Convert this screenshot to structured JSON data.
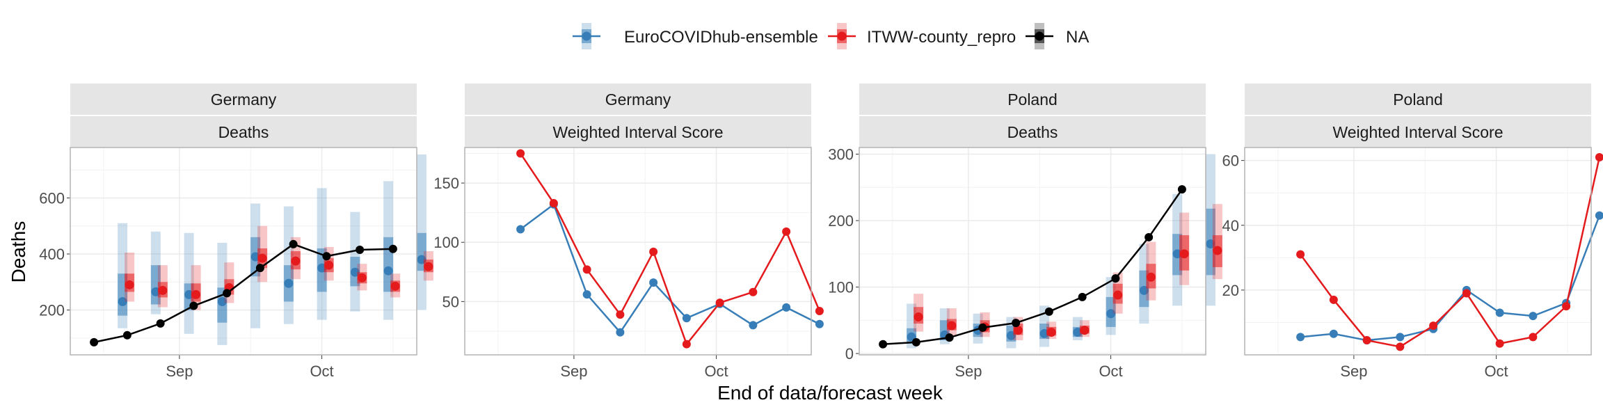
{
  "figure": {
    "xlabel": "End of data/forecast week",
    "ylabel": "Deaths",
    "x_tick_labels": [
      "Sep",
      "Oct"
    ]
  },
  "legend": {
    "placement": "top-center",
    "items": [
      {
        "label": "EuroCOVIDhub-ensemble",
        "color": "#377EB8"
      },
      {
        "label": "ITWW-county_repro",
        "color": "#E41A1C"
      },
      {
        "label": "NA",
        "color": "#000000"
      }
    ]
  },
  "colors": {
    "ensemble": "#377EB8",
    "itww": "#E41A1C",
    "observed": "#000000",
    "strip_bg": "#E5E5E5",
    "grid": "#EBEBEB"
  },
  "chart_data": [
    {
      "type": "line",
      "strip": [
        "Germany",
        "Deaths"
      ],
      "x": [
        "2021-08-14",
        "2021-08-21",
        "2021-08-28",
        "2021-09-04",
        "2021-09-11",
        "2021-09-18",
        "2021-09-25",
        "2021-10-02",
        "2021-10-09",
        "2021-10-16"
      ],
      "xlim": [
        "2021-08-09",
        "2021-10-21"
      ],
      "ylim": [
        40,
        780
      ],
      "yticks": [
        200,
        400,
        600
      ],
      "observed": [
        85,
        110,
        152,
        215,
        260,
        350,
        435,
        392,
        415,
        418
      ],
      "forecasts": [
        {
          "series": "EuroCOVIDhub-ensemble",
          "points": [
            {
              "date": "2021-08-14",
              "median": 230,
              "q25": 180,
              "q75": 330,
              "q05": 135,
              "q95": 510
            },
            {
              "date": "2021-08-21",
              "median": 265,
              "q25": 220,
              "q75": 360,
              "q05": 185,
              "q95": 480
            },
            {
              "date": "2021-08-28",
              "median": 255,
              "q25": 200,
              "q75": 295,
              "q05": 115,
              "q95": 475
            },
            {
              "date": "2021-09-04",
              "median": 230,
              "q25": 155,
              "q75": 280,
              "q05": 75,
              "q95": 440
            },
            {
              "date": "2021-09-11",
              "median": 390,
              "q25": 320,
              "q75": 460,
              "q05": 135,
              "q95": 580
            },
            {
              "date": "2021-09-18",
              "median": 295,
              "q25": 230,
              "q75": 360,
              "q05": 150,
              "q95": 570
            },
            {
              "date": "2021-09-25",
              "median": 350,
              "q25": 265,
              "q75": 420,
              "q05": 165,
              "q95": 635
            },
            {
              "date": "2021-10-02",
              "median": 335,
              "q25": 285,
              "q75": 390,
              "q05": 195,
              "q95": 550
            },
            {
              "date": "2021-10-09",
              "median": 340,
              "q25": 265,
              "q75": 460,
              "q05": 165,
              "q95": 660
            },
            {
              "date": "2021-10-16",
              "median": 380,
              "q25": 340,
              "q75": 475,
              "q05": 200,
              "q95": 755
            }
          ]
        },
        {
          "series": "ITWW-county_repro",
          "points": [
            {
              "date": "2021-08-14",
              "median": 290,
              "q25": 265,
              "q75": 330,
              "q05": 230,
              "q95": 405
            },
            {
              "date": "2021-08-21",
              "median": 270,
              "q25": 245,
              "q75": 300,
              "q05": 210,
              "q95": 360
            },
            {
              "date": "2021-08-28",
              "median": 255,
              "q25": 230,
              "q75": 295,
              "q05": 200,
              "q95": 360
            },
            {
              "date": "2021-09-04",
              "median": 280,
              "q25": 255,
              "q75": 310,
              "q05": 225,
              "q95": 370
            },
            {
              "date": "2021-09-11",
              "median": 385,
              "q25": 350,
              "q75": 420,
              "q05": 300,
              "q95": 500
            },
            {
              "date": "2021-09-18",
              "median": 375,
              "q25": 345,
              "q75": 410,
              "q05": 310,
              "q95": 460
            },
            {
              "date": "2021-09-25",
              "median": 360,
              "q25": 335,
              "q75": 385,
              "q05": 305,
              "q95": 425
            },
            {
              "date": "2021-10-02",
              "median": 315,
              "q25": 295,
              "q75": 335,
              "q05": 270,
              "q95": 365
            },
            {
              "date": "2021-10-09",
              "median": 285,
              "q25": 265,
              "q75": 305,
              "q05": 245,
              "q95": 330
            },
            {
              "date": "2021-10-16",
              "median": 355,
              "q25": 335,
              "q75": 380,
              "q05": 305,
              "q95": 410
            }
          ]
        }
      ]
    },
    {
      "type": "line",
      "strip": [
        "Germany",
        "Weighted Interval Score"
      ],
      "x": [
        "2021-08-14",
        "2021-08-21",
        "2021-08-28",
        "2021-09-04",
        "2021-09-11",
        "2021-09-18",
        "2021-09-25",
        "2021-10-02",
        "2021-10-09",
        "2021-10-16"
      ],
      "xlim": [
        "2021-08-09",
        "2021-10-21"
      ],
      "ylim": [
        5,
        180
      ],
      "yticks": [
        50,
        100,
        150
      ],
      "series": [
        {
          "name": "EuroCOVIDhub-ensemble",
          "values": [
            111,
            132,
            56,
            24,
            66,
            36,
            48,
            30,
            45,
            31
          ]
        },
        {
          "name": "ITWW-county_repro",
          "values": [
            175,
            133,
            77,
            39,
            92,
            14,
            49,
            58,
            109,
            42
          ]
        }
      ]
    },
    {
      "type": "line",
      "strip": [
        "Poland",
        "Deaths"
      ],
      "x": [
        "2021-08-14",
        "2021-08-21",
        "2021-08-28",
        "2021-09-04",
        "2021-09-11",
        "2021-09-18",
        "2021-09-25",
        "2021-10-02",
        "2021-10-09",
        "2021-10-16"
      ],
      "xlim": [
        "2021-08-09",
        "2021-10-21"
      ],
      "ylim": [
        -2,
        310
      ],
      "yticks": [
        0,
        100,
        200,
        300
      ],
      "observed": [
        14,
        17,
        24,
        39,
        46,
        63,
        85,
        113,
        175,
        247
      ],
      "forecasts": [
        {
          "series": "EuroCOVIDhub-ensemble",
          "points": [
            {
              "date": "2021-08-14",
              "median": 25,
              "q25": 15,
              "q75": 38,
              "q05": 8,
              "q95": 75
            },
            {
              "date": "2021-08-21",
              "median": 28,
              "q25": 20,
              "q75": 50,
              "q05": 14,
              "q95": 68
            },
            {
              "date": "2021-08-28",
              "median": 35,
              "q25": 25,
              "q75": 45,
              "q05": 15,
              "q95": 60
            },
            {
              "date": "2021-09-04",
              "median": 27,
              "q25": 18,
              "q75": 42,
              "q05": 8,
              "q95": 55
            },
            {
              "date": "2021-09-11",
              "median": 30,
              "q25": 22,
              "q75": 45,
              "q05": 10,
              "q95": 72
            },
            {
              "date": "2021-09-18",
              "median": 32,
              "q25": 25,
              "q75": 40,
              "q05": 20,
              "q95": 55
            },
            {
              "date": "2021-09-25",
              "median": 60,
              "q25": 40,
              "q75": 85,
              "q05": 28,
              "q95": 115
            },
            {
              "date": "2021-10-02",
              "median": 95,
              "q25": 70,
              "q75": 125,
              "q05": 45,
              "q95": 165
            },
            {
              "date": "2021-10-09",
              "median": 150,
              "q25": 118,
              "q75": 180,
              "q05": 72,
              "q95": 240
            },
            {
              "date": "2021-10-16",
              "median": 165,
              "q25": 118,
              "q75": 218,
              "q05": 72,
              "q95": 300
            }
          ]
        },
        {
          "series": "ITWW-county_repro",
          "points": [
            {
              "date": "2021-08-14",
              "median": 55,
              "q25": 45,
              "q75": 70,
              "q05": 33,
              "q95": 90
            },
            {
              "date": "2021-08-21",
              "median": 42,
              "q25": 35,
              "q75": 52,
              "q05": 25,
              "q95": 68
            },
            {
              "date": "2021-08-28",
              "median": 40,
              "q25": 32,
              "q75": 50,
              "q05": 25,
              "q95": 62
            },
            {
              "date": "2021-09-04",
              "median": 35,
              "q25": 28,
              "q75": 45,
              "q05": 20,
              "q95": 55
            },
            {
              "date": "2021-09-11",
              "median": 32,
              "q25": 27,
              "q75": 40,
              "q05": 22,
              "q95": 48
            },
            {
              "date": "2021-09-18",
              "median": 35,
              "q25": 30,
              "q75": 42,
              "q05": 25,
              "q95": 50
            },
            {
              "date": "2021-09-25",
              "median": 88,
              "q25": 75,
              "q75": 105,
              "q05": 60,
              "q95": 122
            },
            {
              "date": "2021-10-02",
              "median": 115,
              "q25": 98,
              "q75": 135,
              "q05": 80,
              "q95": 168
            },
            {
              "date": "2021-10-09",
              "median": 150,
              "q25": 125,
              "q75": 178,
              "q05": 103,
              "q95": 212
            },
            {
              "date": "2021-10-16",
              "median": 155,
              "q25": 130,
              "q75": 178,
              "q05": 112,
              "q95": 225
            }
          ]
        }
      ]
    },
    {
      "type": "line",
      "strip": [
        "Poland",
        "Weighted Interval Score"
      ],
      "x": [
        "2021-08-14",
        "2021-08-21",
        "2021-08-28",
        "2021-09-04",
        "2021-09-11",
        "2021-09-18",
        "2021-09-25",
        "2021-10-02",
        "2021-10-09",
        "2021-10-16"
      ],
      "xlim": [
        "2021-08-09",
        "2021-10-21"
      ],
      "ylim": [
        0,
        64
      ],
      "yticks": [
        20,
        40,
        60
      ],
      "series": [
        {
          "name": "EuroCOVIDhub-ensemble",
          "values": [
            5.5,
            6.5,
            4.5,
            5.5,
            8,
            20,
            13,
            12,
            16,
            43
          ]
        },
        {
          "name": "ITWW-county_repro",
          "values": [
            31,
            17,
            4.5,
            2.5,
            9,
            19,
            3.5,
            5.5,
            15,
            61
          ]
        }
      ]
    }
  ]
}
